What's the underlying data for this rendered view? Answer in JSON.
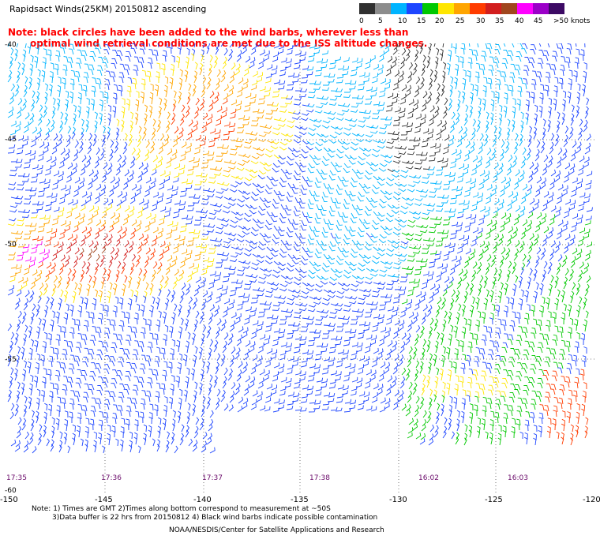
{
  "title": "Rapidsact Winds(25KM) 20150812 ascending",
  "note": {
    "line1": "Note: black circles have been added to the wind barbs, wherever less than",
    "line2": "optimal wind retrieval conditions are met due to the ISS altitude changes."
  },
  "legend": {
    "ticks": [
      "0",
      "5",
      "10",
      "15",
      "20",
      "25",
      "30",
      "35",
      "40",
      "45",
      ">50 knots"
    ],
    "colors": [
      "#303030",
      "#8c8c8c",
      "#00b4ff",
      "#1e46ff",
      "#00c800",
      "#ffe600",
      "#ffa500",
      "#ff3c00",
      "#d21e1e",
      "#a0461e",
      "#ff00ff",
      "#9b00c8",
      "#3c0a64"
    ]
  },
  "axes": {
    "x_ticks": [
      "-150",
      "-145",
      "-140",
      "-135",
      "-130",
      "-125",
      "-120"
    ],
    "y_ticks": [
      "-40",
      "-45",
      "-50",
      "-55",
      "-60"
    ]
  },
  "times": [
    "17:35",
    "17:36",
    "17:37",
    "17:38",
    "16:02",
    "16:03"
  ],
  "footer": {
    "note1": "Note: 1) Times are GMT 2)Times along bottom correspond to measurement at ~50S",
    "note2": "3)Data buffer is 22 hrs from 20150812 4) Black wind barbs indicate possible contamination",
    "credit": "NOAA/NESDIS/Center for Satellite Applications and Research"
  }
}
